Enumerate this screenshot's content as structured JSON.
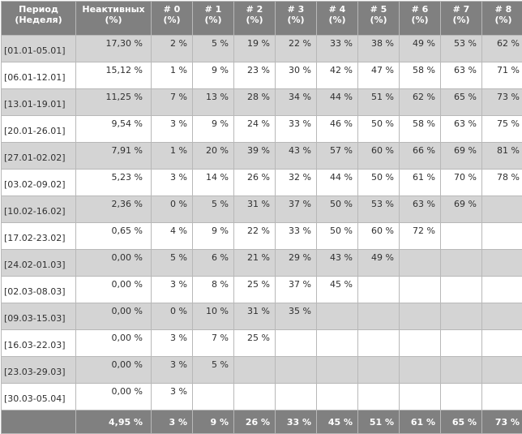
{
  "header": {
    "period": [
      "Период",
      "(Неделя)"
    ],
    "inactive": [
      "Неактивных",
      "(%)"
    ],
    "weeks": [
      [
        "# 0",
        "(%)"
      ],
      [
        "# 1",
        "(%)"
      ],
      [
        "# 2",
        "(%)"
      ],
      [
        "# 3",
        "(%)"
      ],
      [
        "# 4",
        "(%)"
      ],
      [
        "# 5",
        "(%)"
      ],
      [
        "# 6",
        "(%)"
      ],
      [
        "# 7",
        "(%)"
      ],
      [
        "# 8",
        "(%)"
      ]
    ]
  },
  "rows": [
    {
      "period": "[01.01-05.01]",
      "inactive": "17,30 %",
      "values": [
        "2 %",
        "5 %",
        "19 %",
        "22 %",
        "33 %",
        "38 %",
        "49 %",
        "53 %",
        "62 %"
      ]
    },
    {
      "period": "[06.01-12.01]",
      "inactive": "15,12 %",
      "values": [
        "1 %",
        "9 %",
        "23 %",
        "30 %",
        "42 %",
        "47 %",
        "58 %",
        "63 %",
        "71 %"
      ]
    },
    {
      "period": "[13.01-19.01]",
      "inactive": "11,25 %",
      "values": [
        "7 %",
        "13 %",
        "28 %",
        "34 %",
        "44 %",
        "51 %",
        "62 %",
        "65 %",
        "73 %"
      ]
    },
    {
      "period": "[20.01-26.01]",
      "inactive": "9,54 %",
      "values": [
        "3 %",
        "9 %",
        "24 %",
        "33 %",
        "46 %",
        "50 %",
        "58 %",
        "63 %",
        "75 %"
      ]
    },
    {
      "period": "[27.01-02.02]",
      "inactive": "7,91 %",
      "values": [
        "1 %",
        "20 %",
        "39 %",
        "43 %",
        "57 %",
        "60 %",
        "66 %",
        "69 %",
        "81 %"
      ]
    },
    {
      "period": "[03.02-09.02]",
      "inactive": "5,23 %",
      "values": [
        "3 %",
        "14 %",
        "26 %",
        "32 %",
        "44 %",
        "50 %",
        "61 %",
        "70 %",
        "78 %"
      ]
    },
    {
      "period": "[10.02-16.02]",
      "inactive": "2,36 %",
      "values": [
        "0 %",
        "5 %",
        "31 %",
        "37 %",
        "50 %",
        "53 %",
        "63 %",
        "69 %",
        ""
      ]
    },
    {
      "period": "[17.02-23.02]",
      "inactive": "0,65 %",
      "values": [
        "4 %",
        "9 %",
        "22 %",
        "33 %",
        "50 %",
        "60 %",
        "72 %",
        "",
        ""
      ]
    },
    {
      "period": "[24.02-01.03]",
      "inactive": "0,00 %",
      "values": [
        "5 %",
        "6 %",
        "21 %",
        "29 %",
        "43 %",
        "49 %",
        "",
        "",
        ""
      ]
    },
    {
      "period": "[02.03-08.03]",
      "inactive": "0,00 %",
      "values": [
        "3 %",
        "8 %",
        "25 %",
        "37 %",
        "45 %",
        "",
        "",
        "",
        ""
      ]
    },
    {
      "period": "[09.03-15.03]",
      "inactive": "0,00 %",
      "values": [
        "0 %",
        "10 %",
        "31 %",
        "35 %",
        "",
        "",
        "",
        "",
        ""
      ]
    },
    {
      "period": "[16.03-22.03]",
      "inactive": "0,00 %",
      "values": [
        "3 %",
        "7 %",
        "25 %",
        "",
        "",
        "",
        "",
        "",
        ""
      ]
    },
    {
      "period": "[23.03-29.03]",
      "inactive": "0,00 %",
      "values": [
        "3 %",
        "5 %",
        "",
        "",
        "",
        "",
        "",
        "",
        ""
      ]
    },
    {
      "period": "[30.03-05.04]",
      "inactive": "0,00 %",
      "values": [
        "3 %",
        "",
        "",
        "",
        "",
        "",
        "",
        "",
        ""
      ]
    }
  ],
  "totals": {
    "inactive": "4,95 %",
    "values": [
      "3 %",
      "9 %",
      "26 %",
      "33 %",
      "45 %",
      "51 %",
      "61 %",
      "65 %",
      "73 %"
    ]
  },
  "colors": {
    "header_bg": "#808080",
    "row_shaded": "#d4d4d4",
    "row_plain": "#ffffff",
    "border": "#b8b8b8"
  }
}
